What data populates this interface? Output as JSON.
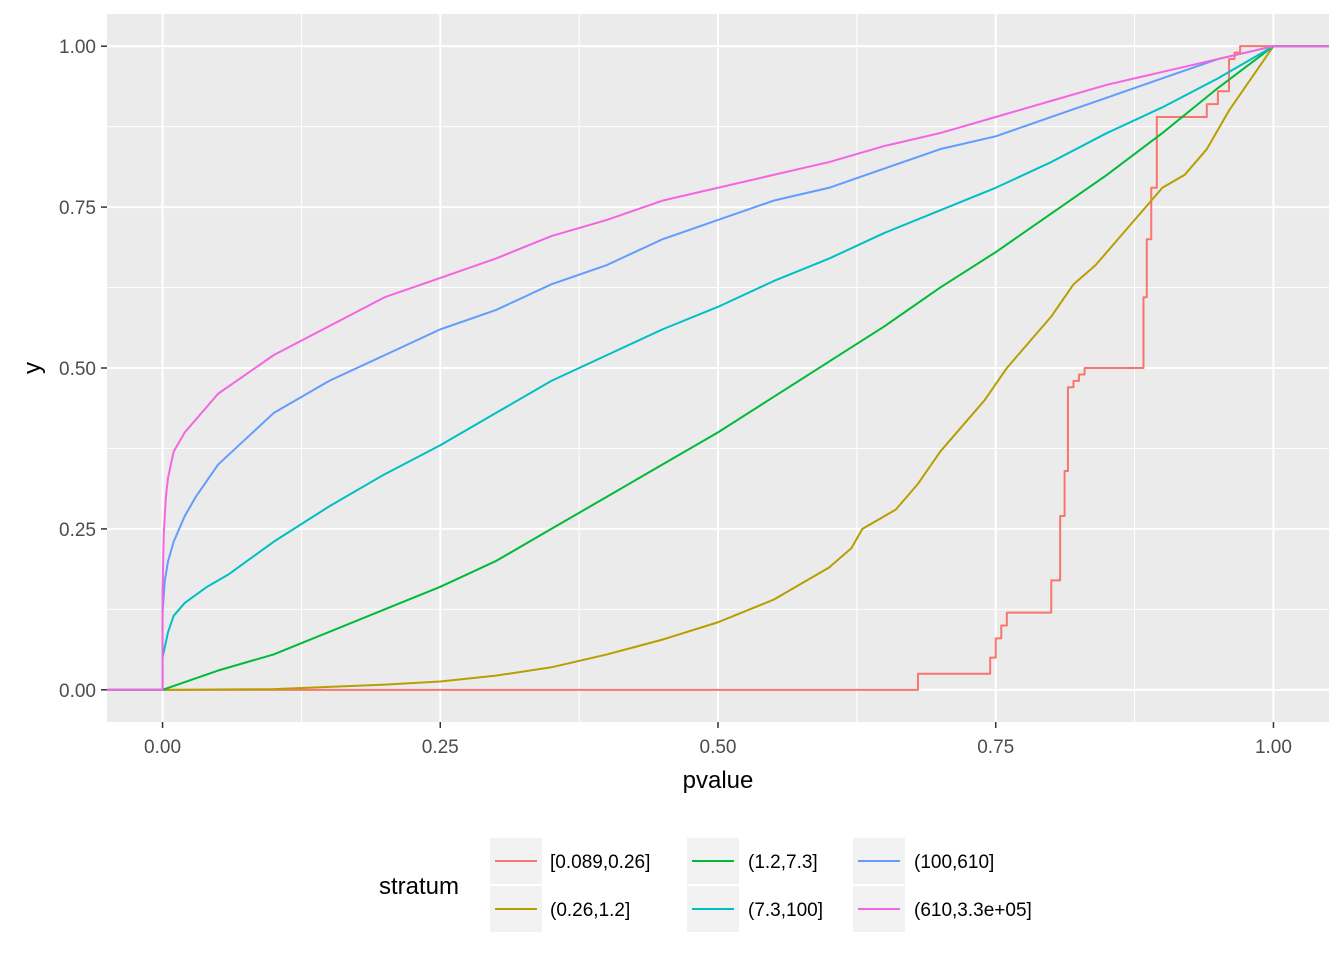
{
  "chart_data": {
    "type": "line",
    "title": "",
    "xlabel": "pvalue",
    "ylabel": "y",
    "xlim": [
      -0.05,
      1.05
    ],
    "ylim": [
      -0.05,
      1.05
    ],
    "x_ticks": [
      0,
      0.25,
      0.5,
      0.75,
      1
    ],
    "x_tick_labels": [
      "0.00",
      "0.25",
      "0.50",
      "0.75",
      "1.00"
    ],
    "y_ticks": [
      0,
      0.25,
      0.5,
      0.75,
      1
    ],
    "y_tick_labels": [
      "0.00",
      "0.25",
      "0.50",
      "0.75",
      "1.00"
    ],
    "grid": true,
    "legend_position": "bottom",
    "legend": {
      "title": "stratum",
      "items": [
        {
          "label": "[0.089,0.26]",
          "color": "#F8766D"
        },
        {
          "label": "(0.26,1.2]",
          "color": "#B79F00"
        },
        {
          "label": "(1.2,7.3]",
          "color": "#00BA38"
        },
        {
          "label": "(7.3,100]",
          "color": "#00BFC4"
        },
        {
          "label": "(100,610]",
          "color": "#619CFF"
        },
        {
          "label": "(610,3.3e+05]",
          "color": "#F564E3"
        }
      ]
    },
    "series": [
      {
        "name": "[0.089,0.26]",
        "color": "#F8766D",
        "x": [
          -0.05,
          0,
          0.68,
          0.68,
          0.745,
          0.745,
          0.75,
          0.75,
          0.755,
          0.755,
          0.76,
          0.76,
          0.8,
          0.8,
          0.808,
          0.808,
          0.812,
          0.812,
          0.815,
          0.815,
          0.82,
          0.82,
          0.825,
          0.825,
          0.83,
          0.83,
          0.84,
          0.84,
          0.883,
          0.883,
          0.886,
          0.886,
          0.89,
          0.89,
          0.895,
          0.895,
          0.94,
          0.94,
          0.95,
          0.95,
          0.96,
          0.96,
          0.965,
          0.965,
          0.97,
          0.97,
          1,
          1.05
        ],
        "y": [
          0,
          0,
          0,
          0.025,
          0.025,
          0.05,
          0.05,
          0.08,
          0.08,
          0.1,
          0.1,
          0.12,
          0.12,
          0.17,
          0.17,
          0.27,
          0.27,
          0.34,
          0.34,
          0.47,
          0.47,
          0.48,
          0.48,
          0.49,
          0.49,
          0.5,
          0.5,
          0.5,
          0.5,
          0.61,
          0.61,
          0.7,
          0.7,
          0.78,
          0.78,
          0.89,
          0.89,
          0.91,
          0.91,
          0.93,
          0.93,
          0.98,
          0.98,
          0.99,
          0.99,
          1,
          1,
          1
        ]
      },
      {
        "name": "(0.26,1.2]",
        "color": "#B79F00",
        "x": [
          -0.05,
          0,
          0.1,
          0.2,
          0.25,
          0.3,
          0.35,
          0.4,
          0.45,
          0.5,
          0.55,
          0.6,
          0.62,
          0.63,
          0.66,
          0.68,
          0.7,
          0.72,
          0.74,
          0.76,
          0.78,
          0.8,
          0.82,
          0.84,
          0.86,
          0.88,
          0.9,
          0.92,
          0.94,
          0.96,
          0.98,
          1,
          1.05
        ],
        "y": [
          0,
          0,
          0.001,
          0.008,
          0.013,
          0.022,
          0.035,
          0.055,
          0.078,
          0.105,
          0.14,
          0.19,
          0.22,
          0.25,
          0.28,
          0.32,
          0.37,
          0.41,
          0.45,
          0.5,
          0.54,
          0.58,
          0.63,
          0.66,
          0.7,
          0.74,
          0.78,
          0.8,
          0.84,
          0.9,
          0.95,
          1,
          1
        ]
      },
      {
        "name": "(1.2,7.3]",
        "color": "#00BA38",
        "x": [
          -0.05,
          0,
          0.05,
          0.1,
          0.15,
          0.2,
          0.25,
          0.3,
          0.35,
          0.4,
          0.45,
          0.5,
          0.55,
          0.6,
          0.65,
          0.7,
          0.75,
          0.8,
          0.85,
          0.9,
          0.95,
          1,
          1.05
        ],
        "y": [
          0,
          0,
          0.03,
          0.055,
          0.09,
          0.125,
          0.16,
          0.2,
          0.25,
          0.3,
          0.35,
          0.4,
          0.455,
          0.51,
          0.565,
          0.625,
          0.68,
          0.74,
          0.8,
          0.865,
          0.935,
          1,
          1
        ]
      },
      {
        "name": "(7.3,100]",
        "color": "#00BFC4",
        "x": [
          -0.05,
          0,
          0,
          0.005,
          0.01,
          0.02,
          0.04,
          0.06,
          0.08,
          0.1,
          0.15,
          0.2,
          0.25,
          0.3,
          0.35,
          0.4,
          0.45,
          0.5,
          0.55,
          0.6,
          0.65,
          0.7,
          0.75,
          0.8,
          0.85,
          0.9,
          0.95,
          1,
          1.05
        ],
        "y": [
          0,
          0,
          0.05,
          0.09,
          0.115,
          0.135,
          0.16,
          0.18,
          0.205,
          0.23,
          0.285,
          0.335,
          0.38,
          0.43,
          0.48,
          0.52,
          0.56,
          0.595,
          0.635,
          0.67,
          0.71,
          0.745,
          0.78,
          0.82,
          0.865,
          0.905,
          0.95,
          1,
          1
        ]
      },
      {
        "name": "(100,610]",
        "color": "#619CFF",
        "x": [
          -0.05,
          0,
          0,
          0.002,
          0.005,
          0.01,
          0.02,
          0.03,
          0.05,
          0.075,
          0.1,
          0.15,
          0.2,
          0.25,
          0.3,
          0.35,
          0.4,
          0.45,
          0.5,
          0.55,
          0.6,
          0.65,
          0.7,
          0.75,
          0.8,
          0.85,
          0.9,
          0.95,
          1,
          1.05
        ],
        "y": [
          0,
          0,
          0.12,
          0.17,
          0.2,
          0.23,
          0.27,
          0.3,
          0.35,
          0.39,
          0.43,
          0.48,
          0.52,
          0.56,
          0.59,
          0.63,
          0.66,
          0.7,
          0.73,
          0.76,
          0.78,
          0.81,
          0.84,
          0.86,
          0.89,
          0.92,
          0.95,
          0.98,
          1,
          1
        ]
      },
      {
        "name": "(610,3.3e+05]",
        "color": "#F564E3",
        "x": [
          -0.05,
          0,
          0,
          0.001,
          0.003,
          0.005,
          0.01,
          0.02,
          0.03,
          0.04,
          0.05,
          0.075,
          0.1,
          0.15,
          0.2,
          0.25,
          0.3,
          0.35,
          0.4,
          0.45,
          0.5,
          0.55,
          0.6,
          0.65,
          0.7,
          0.75,
          0.8,
          0.85,
          0.9,
          0.95,
          1,
          1.05
        ],
        "y": [
          0,
          0,
          0.15,
          0.24,
          0.3,
          0.33,
          0.37,
          0.4,
          0.42,
          0.44,
          0.46,
          0.49,
          0.52,
          0.565,
          0.61,
          0.64,
          0.67,
          0.705,
          0.73,
          0.76,
          0.78,
          0.8,
          0.82,
          0.845,
          0.865,
          0.89,
          0.915,
          0.94,
          0.96,
          0.98,
          1,
          1
        ]
      }
    ]
  }
}
